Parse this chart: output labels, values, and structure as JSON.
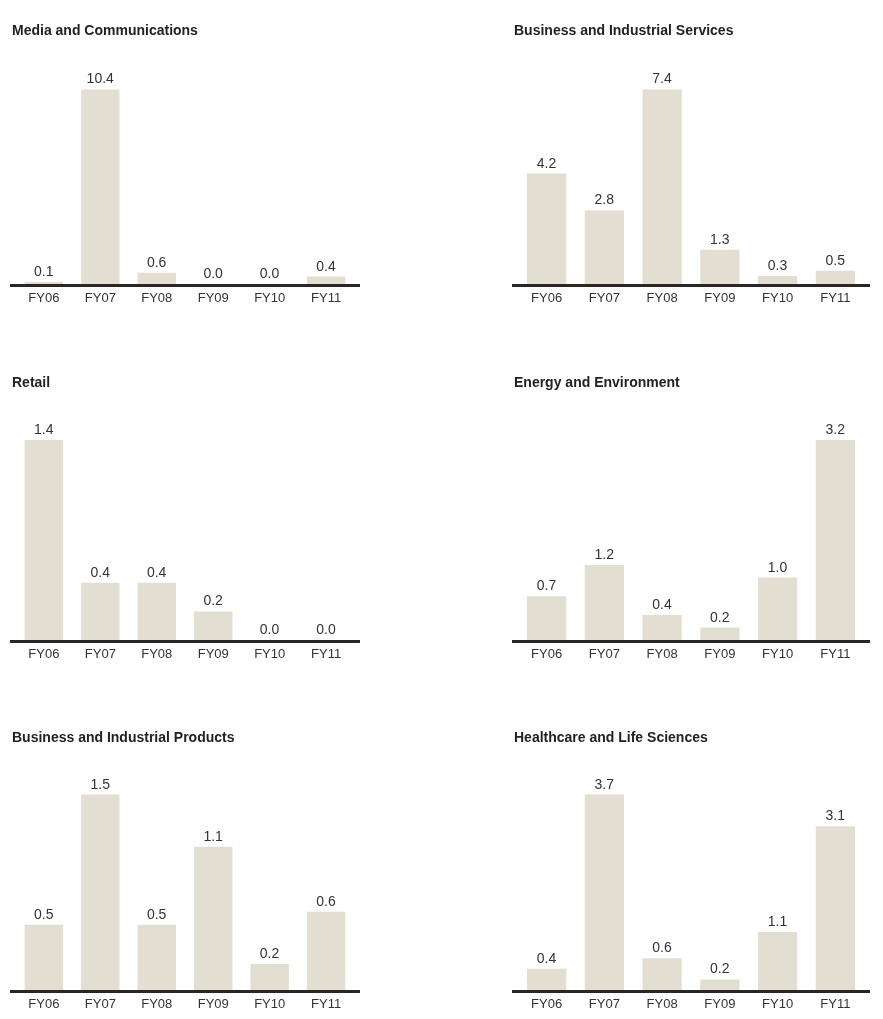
{
  "chart_data": [
    {
      "type": "bar",
      "title": "Media and Communications",
      "categories": [
        "FY06",
        "FY07",
        "FY08",
        "FY09",
        "FY10",
        "FY11"
      ],
      "values": [
        0.1,
        10.4,
        0.6,
        0.0,
        0.0,
        0.4
      ],
      "value_labels": [
        "0.1",
        "10.4",
        "0.6",
        "0.0",
        "0.0",
        "0.4"
      ],
      "color": "#e2ded1"
    },
    {
      "type": "bar",
      "title": "Business and Industrial Services",
      "categories": [
        "FY06",
        "FY07",
        "FY08",
        "FY09",
        "FY10",
        "FY11"
      ],
      "values": [
        4.2,
        2.8,
        7.4,
        1.3,
        0.3,
        0.5
      ],
      "value_labels": [
        "4.2",
        "2.8",
        "7.4",
        "1.3",
        "0.3",
        "0.5"
      ],
      "color": "#e2ded1"
    },
    {
      "type": "bar",
      "title": "Retail",
      "categories": [
        "FY06",
        "FY07",
        "FY08",
        "FY09",
        "FY10",
        "FY11"
      ],
      "values": [
        1.4,
        0.4,
        0.4,
        0.2,
        0.0,
        0.0
      ],
      "value_labels": [
        "1.4",
        "0.4",
        "0.4",
        "0.2",
        "0.0",
        "0.0"
      ],
      "color": "#e2ded1"
    },
    {
      "type": "bar",
      "title": "Energy and Environment",
      "categories": [
        "FY06",
        "FY07",
        "FY08",
        "FY09",
        "FY10",
        "FY11"
      ],
      "values": [
        0.7,
        1.2,
        0.4,
        0.2,
        1.0,
        3.2
      ],
      "value_labels": [
        "0.7",
        "1.2",
        "0.4",
        "0.2",
        "1.0",
        "3.2"
      ],
      "color": "#e2ded1"
    },
    {
      "type": "bar",
      "title": "Business and Industrial Products",
      "categories": [
        "FY06",
        "FY07",
        "FY08",
        "FY09",
        "FY10",
        "FY11"
      ],
      "values": [
        0.5,
        1.5,
        0.5,
        1.1,
        0.2,
        0.6
      ],
      "value_labels": [
        "0.5",
        "1.5",
        "0.5",
        "1.1",
        "0.2",
        "0.6"
      ],
      "color": "#e2ded1"
    },
    {
      "type": "bar",
      "title": "Healthcare and Life Sciences",
      "categories": [
        "FY06",
        "FY07",
        "FY08",
        "FY09",
        "FY10",
        "FY11"
      ],
      "values": [
        0.4,
        3.7,
        0.6,
        0.2,
        1.1,
        3.1
      ],
      "value_labels": [
        "0.4",
        "3.7",
        "0.6",
        "0.2",
        "1.1",
        "3.1"
      ],
      "color": "#e2ded1"
    }
  ]
}
